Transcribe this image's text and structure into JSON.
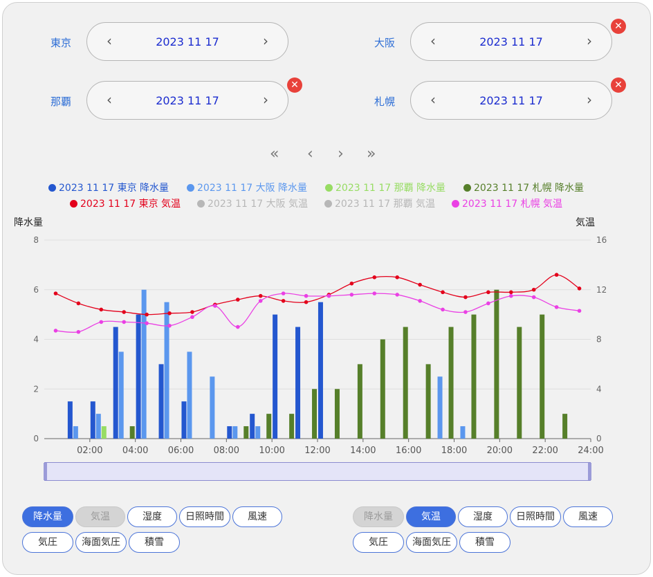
{
  "cities": [
    {
      "name": "東京",
      "date": "2023 11 17",
      "removable": false
    },
    {
      "name": "大阪",
      "date": "2023 11 17",
      "removable": true
    },
    {
      "name": "那覇",
      "date": "2023 11 17",
      "removable": true
    },
    {
      "name": "札幌",
      "date": "2023 11 17",
      "removable": true
    }
  ],
  "icons": {
    "prev": "chevron-left-icon",
    "next": "chevron-right-icon",
    "close": "close-icon"
  },
  "pager": {
    "first": "«",
    "prev": "‹",
    "next": "›",
    "last": "»"
  },
  "colors": {
    "tokyo_rain": "#2457cf",
    "osaka_rain": "#5b97ee",
    "naha_rain": "#97dc63",
    "sapporo_rain": "#567f2a",
    "tokyo_temp": "#e3001b",
    "osaka_temp": "#b7b7b7",
    "naha_temp": "#b7b7b7",
    "sapporo_temp": "#ea40e4",
    "accent": "#3d6fe0"
  },
  "legend": [
    {
      "label": "2023 11 17 東京 降水量",
      "color": "#2457cf",
      "text_color": "#2457cf"
    },
    {
      "label": "2023 11 17 大阪 降水量",
      "color": "#5b97ee",
      "text_color": "#5b97ee"
    },
    {
      "label": "2023 11 17 那覇 降水量",
      "color": "#97dc63",
      "text_color": "#97dc63"
    },
    {
      "label": "2023 11 17 札幌 降水量",
      "color": "#567f2a",
      "text_color": "#567f2a"
    },
    {
      "label": "2023 11 17 東京 気温",
      "color": "#e3001b",
      "text_color": "#e3001b"
    },
    {
      "label": "2023 11 17 大阪 気温",
      "color": "#b7b7b7",
      "text_color": "#b7b7b7"
    },
    {
      "label": "2023 11 17 那覇 気温",
      "color": "#b7b7b7",
      "text_color": "#b7b7b7"
    },
    {
      "label": "2023 11 17 札幌 気温",
      "color": "#ea40e4",
      "text_color": "#ea40e4"
    }
  ],
  "chart_data": {
    "type": "bar",
    "y_left_label": "降水量",
    "y_right_label": "気温",
    "y_left_ticks": [
      0,
      2,
      4,
      6,
      8
    ],
    "y_right_ticks": [
      0,
      4,
      8,
      12,
      16
    ],
    "ylim_left": [
      0,
      8
    ],
    "ylim_right": [
      0,
      16
    ],
    "x_ticks": [
      "02:00",
      "04:00",
      "06:00",
      "08:00",
      "10:00",
      "12:00",
      "14:00",
      "16:00",
      "18:00",
      "20:00",
      "22:00",
      "24:00"
    ],
    "x": [
      "01:00",
      "02:00",
      "03:00",
      "04:00",
      "05:00",
      "06:00",
      "07:00",
      "08:00",
      "09:00",
      "10:00",
      "11:00",
      "12:00",
      "13:00",
      "14:00",
      "15:00",
      "16:00",
      "17:00",
      "18:00",
      "19:00",
      "20:00",
      "21:00",
      "22:00",
      "23:00",
      "24:00"
    ],
    "grid": true,
    "bar_series": [
      {
        "name": "2023 11 17 東京 降水量",
        "color": "#2457cf",
        "values": [
          null,
          1.5,
          1.5,
          4.5,
          5,
          3,
          1.5,
          null,
          0.5,
          1,
          5,
          4.5,
          5.5,
          null,
          null,
          null,
          null,
          null,
          null,
          null,
          null,
          null,
          null,
          null
        ]
      },
      {
        "name": "2023 11 17 大阪 降水量",
        "color": "#5b97ee",
        "values": [
          null,
          0.5,
          1,
          3.5,
          6,
          5.5,
          3.5,
          2.5,
          0.5,
          0.5,
          null,
          null,
          null,
          null,
          null,
          null,
          null,
          2.5,
          0.5,
          null,
          null,
          null,
          null,
          null
        ]
      },
      {
        "name": "2023 11 17 那覇 降水量",
        "color": "#97dc63",
        "values": [
          null,
          null,
          0.5,
          null,
          null,
          null,
          null,
          null,
          null,
          null,
          null,
          null,
          null,
          null,
          null,
          null,
          null,
          null,
          null,
          null,
          null,
          null,
          null,
          null
        ]
      },
      {
        "name": "2023 11 17 札幌 降水量",
        "color": "#567f2a",
        "values": [
          null,
          null,
          null,
          0.5,
          null,
          null,
          null,
          null,
          0.5,
          1,
          1,
          2,
          2,
          3,
          4,
          4.5,
          3,
          4.5,
          5,
          6,
          4.5,
          5,
          1,
          null
        ]
      }
    ],
    "line_series": [
      {
        "name": "2023 11 17 東京 気温",
        "color": "#e3001b",
        "values": [
          11.7,
          10.9,
          10.4,
          10.2,
          10,
          10.1,
          10.2,
          10.8,
          11.2,
          11.5,
          11.1,
          11,
          11.6,
          12.5,
          13,
          13,
          12.4,
          11.8,
          11.4,
          11.8,
          11.8,
          12,
          13.2,
          12.1
        ]
      },
      {
        "name": "2023 11 17 札幌 気温",
        "color": "#ea40e4",
        "values": [
          8.7,
          8.6,
          9.4,
          9.4,
          9.3,
          9.1,
          9.8,
          10.7,
          9,
          11.1,
          11.7,
          11.5,
          11.5,
          11.6,
          11.7,
          11.6,
          11.1,
          10.4,
          10.2,
          10.9,
          11.5,
          11.4,
          10.6,
          10.3
        ]
      }
    ]
  },
  "left_buttons": [
    {
      "label": "降水量",
      "state": "active"
    },
    {
      "label": "気温",
      "state": "disabled"
    },
    {
      "label": "湿度",
      "state": "normal"
    },
    {
      "label": "日照時間",
      "state": "normal"
    },
    {
      "label": "風速",
      "state": "normal"
    },
    {
      "label": "気圧",
      "state": "normal"
    },
    {
      "label": "海面気圧",
      "state": "normal"
    },
    {
      "label": "積雪",
      "state": "normal"
    }
  ],
  "right_buttons": [
    {
      "label": "降水量",
      "state": "disabled"
    },
    {
      "label": "気温",
      "state": "active"
    },
    {
      "label": "湿度",
      "state": "normal"
    },
    {
      "label": "日照時間",
      "state": "normal"
    },
    {
      "label": "風速",
      "state": "normal"
    },
    {
      "label": "気圧",
      "state": "normal"
    },
    {
      "label": "海面気圧",
      "state": "normal"
    },
    {
      "label": "積雪",
      "state": "normal"
    }
  ]
}
